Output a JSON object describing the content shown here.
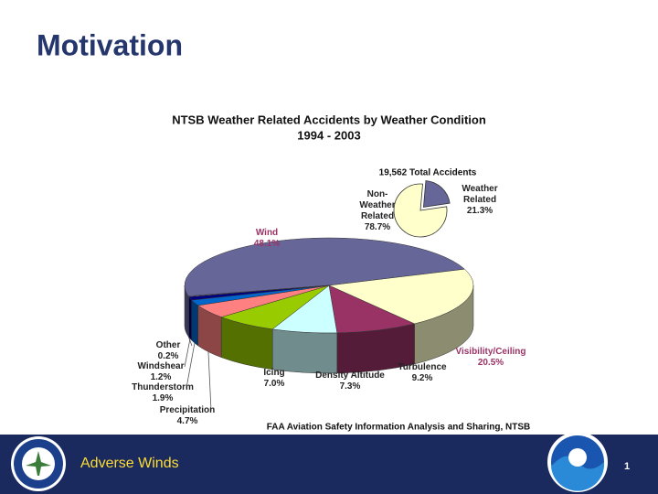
{
  "slide": {
    "title": "Motivation",
    "footer": "Adverse Winds",
    "page_number": 1
  },
  "chart_data": [
    {
      "type": "pie",
      "title": "NTSB Weather Related Accidents by Weather Condition",
      "subtitle": "1994 - 2003",
      "categories": [
        "Wind",
        "Visibility/Ceiling",
        "Turbulence",
        "Density Altitude",
        "Icing",
        "Precipitation",
        "Thunderstorm",
        "Windshear",
        "Other"
      ],
      "values": [
        48.1,
        20.5,
        9.2,
        7.3,
        7.0,
        4.7,
        1.9,
        1.2,
        0.2
      ],
      "value_labels": [
        "48.1%",
        "20.5%",
        "9.2%",
        "7.3%",
        "7.0%",
        "4.7%",
        "1.9%",
        "1.2%",
        "0.2%"
      ],
      "colors": [
        "#666699",
        "#ffffcc",
        "#993366",
        "#ccffff",
        "#99cc00",
        "#ff8080",
        "#0066cc",
        "#000080",
        "#ccccff"
      ],
      "source": "FAA Aviation Safety Information Analysis and Sharing, NTSB"
    },
    {
      "type": "pie",
      "title": "19,562 Total Accidents",
      "categories": [
        "Weather Related",
        "Non-Weather Related"
      ],
      "values": [
        21.3,
        78.7
      ],
      "value_labels": [
        "21.3%",
        "78.7%"
      ],
      "colors": [
        "#666699",
        "#ffffcc"
      ]
    }
  ]
}
